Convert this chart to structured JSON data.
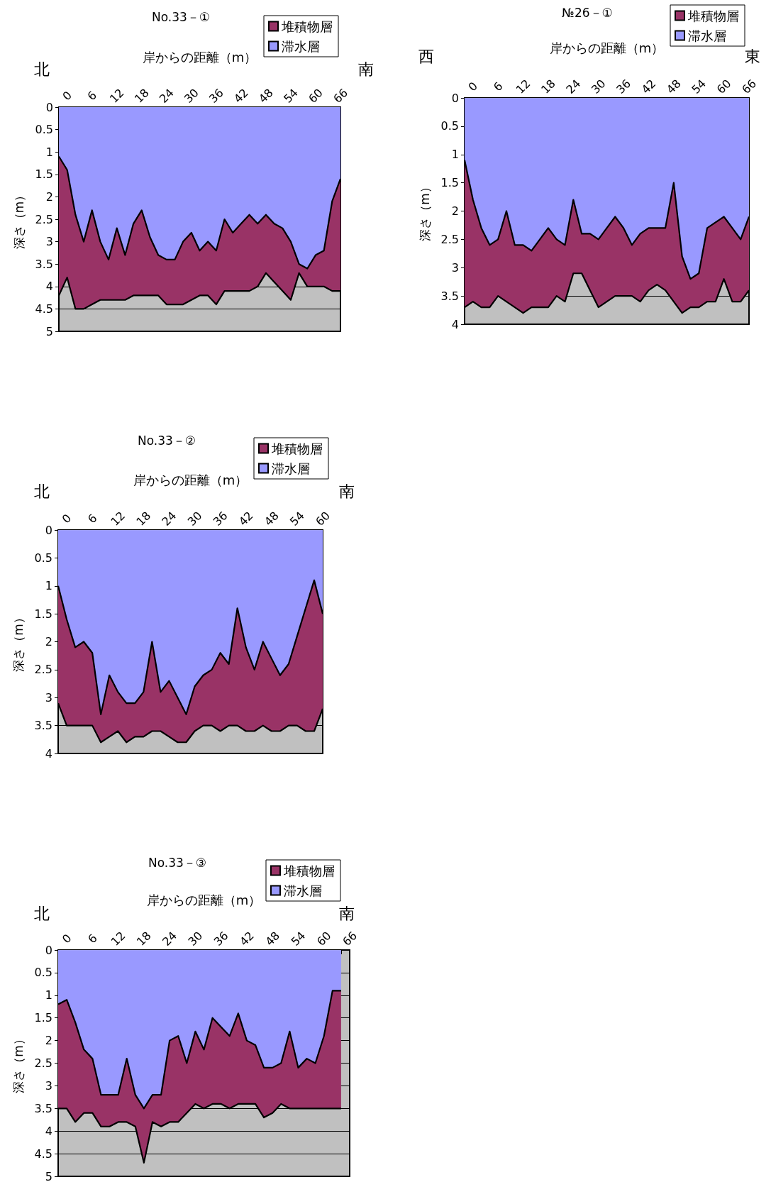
{
  "chart_data": [
    {
      "type": "area",
      "title": "No.33－①",
      "xlabel": "岸からの距離（m）",
      "ylabel": "深さ（m）",
      "annotations": [
        "北",
        "南"
      ],
      "categories": [
        null,
        "0",
        null,
        null,
        "6",
        null,
        null,
        "12",
        null,
        null,
        "18",
        null,
        null,
        "24",
        null,
        null,
        "30",
        null,
        null,
        "36",
        null,
        null,
        "42",
        null,
        null,
        "48",
        null,
        null,
        "54",
        null,
        null,
        "60",
        null,
        null,
        "66"
      ],
      "stacked": true,
      "ylim": [
        5,
        0
      ],
      "yticks": [
        0,
        0.5,
        1,
        1.5,
        2,
        2.5,
        3,
        3.5,
        4,
        4.5,
        5
      ],
      "grid": "y",
      "legend": "top right",
      "line_style": "solid",
      "marker": "none",
      "series": [
        {
          "name": "滞水層",
          "color": "#9999ff",
          "values": [
            1.1,
            1.4,
            2.4,
            3.0,
            2.3,
            3.0,
            3.4,
            2.7,
            3.3,
            2.6,
            2.3,
            2.9,
            3.3,
            3.4,
            3.4,
            3.0,
            2.8,
            3.2,
            3.0,
            3.2,
            2.5,
            2.8,
            2.6,
            2.4,
            2.6,
            2.4,
            2.6,
            2.7,
            3.0,
            3.5,
            3.6,
            3.3,
            3.2,
            2.1,
            1.6
          ]
        },
        {
          "name": "堆積物層",
          "color": "#993366",
          "values": [
            3.1,
            2.4,
            2.1,
            1.5,
            2.1,
            1.3,
            0.9,
            1.6,
            1.0,
            1.6,
            1.9,
            1.3,
            0.9,
            1.0,
            1.0,
            1.4,
            1.5,
            1.0,
            1.2,
            1.2,
            1.6,
            1.3,
            1.5,
            1.7,
            1.4,
            1.3,
            1.3,
            1.4,
            1.3,
            0.2,
            0.4,
            0.7,
            0.8,
            2.0,
            2.5
          ]
        }
      ]
    },
    {
      "type": "area",
      "title": "№26－①",
      "xlabel": "岸からの距離（m）",
      "ylabel": "深さ（m）",
      "annotations": [
        "西",
        "東"
      ],
      "categories": [
        null,
        "0",
        null,
        null,
        "6",
        null,
        null,
        "12",
        null,
        null,
        "18",
        null,
        null,
        "24",
        null,
        null,
        "30",
        null,
        null,
        "36",
        null,
        null,
        "42",
        null,
        null,
        "48",
        null,
        null,
        "54",
        null,
        null,
        "60",
        null,
        null,
        "66"
      ],
      "stacked": true,
      "ylim": [
        4,
        0
      ],
      "yticks": [
        0,
        0.5,
        1,
        1.5,
        2,
        2.5,
        3,
        3.5,
        4
      ],
      "grid": "y",
      "legend": "top right",
      "line_style": "solid",
      "marker": "none",
      "series": [
        {
          "name": "滞水層",
          "color": "#9999ff",
          "values": [
            1.1,
            1.8,
            2.3,
            2.6,
            2.5,
            2.0,
            2.6,
            2.6,
            2.7,
            2.5,
            2.3,
            2.5,
            2.6,
            1.8,
            2.4,
            2.4,
            2.5,
            2.3,
            2.1,
            2.3,
            2.6,
            2.4,
            2.3,
            2.3,
            2.3,
            1.5,
            2.8,
            3.2,
            3.1,
            2.3,
            2.2,
            2.1,
            2.3,
            2.5,
            2.1
          ]
        },
        {
          "name": "堆積物層",
          "color": "#993366",
          "values": [
            2.6,
            1.8,
            1.4,
            1.1,
            1.0,
            1.6,
            1.1,
            1.2,
            1.0,
            1.2,
            1.4,
            1.0,
            1.0,
            1.3,
            0.7,
            1.0,
            1.2,
            1.3,
            1.4,
            1.2,
            0.9,
            1.2,
            1.1,
            1.0,
            1.1,
            2.1,
            1.0,
            0.5,
            0.6,
            1.3,
            1.4,
            1.1,
            1.3,
            1.1,
            1.3
          ]
        }
      ]
    },
    {
      "type": "area",
      "title": "No.33－②",
      "xlabel": "岸からの距離（m）",
      "ylabel": "深さ（m）",
      "annotations": [
        "北",
        "南"
      ],
      "categories": [
        null,
        "0",
        null,
        null,
        "6",
        null,
        null,
        "12",
        null,
        null,
        "18",
        null,
        null,
        "24",
        null,
        null,
        "30",
        null,
        null,
        "36",
        null,
        null,
        "42",
        null,
        null,
        "48",
        null,
        null,
        "54",
        null,
        null,
        "60"
      ],
      "stacked": true,
      "ylim": [
        4,
        0
      ],
      "yticks": [
        0,
        0.5,
        1,
        1.5,
        2,
        2.5,
        3,
        3.5,
        4
      ],
      "grid": "y",
      "legend": "top right",
      "line_style": "solid",
      "marker": "none",
      "series": [
        {
          "name": "滞水層",
          "color": "#9999ff",
          "values": [
            1.0,
            1.6,
            2.1,
            2.0,
            2.2,
            3.3,
            2.6,
            2.9,
            3.1,
            3.1,
            2.9,
            2.0,
            2.9,
            2.7,
            3.0,
            3.3,
            2.8,
            2.6,
            2.5,
            2.2,
            2.4,
            1.4,
            2.1,
            2.5,
            2.0,
            2.3,
            2.6,
            2.4,
            1.9,
            1.4,
            0.9,
            1.5
          ]
        },
        {
          "name": "堆積物層",
          "color": "#993366",
          "values": [
            2.1,
            1.9,
            1.4,
            1.5,
            1.3,
            0.5,
            1.1,
            0.7,
            0.7,
            0.6,
            0.8,
            1.6,
            0.7,
            1.0,
            0.8,
            0.5,
            0.8,
            0.9,
            1.0,
            1.4,
            1.1,
            2.1,
            1.5,
            1.1,
            1.5,
            1.3,
            1.0,
            1.1,
            1.6,
            2.2,
            2.7,
            1.7
          ]
        }
      ]
    },
    {
      "type": "area",
      "title": "No.33－③",
      "xlabel": "岸からの距離（m）",
      "ylabel": "深さ（m）",
      "annotations": [
        "北",
        "南"
      ],
      "categories": [
        null,
        "0",
        null,
        null,
        "6",
        null,
        null,
        "12",
        null,
        null,
        "18",
        null,
        null,
        "24",
        null,
        null,
        "30",
        null,
        null,
        "36",
        null,
        null,
        "42",
        null,
        null,
        "48",
        null,
        null,
        "54",
        null,
        null,
        "60",
        null,
        null,
        "66"
      ],
      "stacked": true,
      "ylim": [
        5,
        0
      ],
      "yticks": [
        0,
        0.5,
        1,
        1.5,
        2,
        2.5,
        3,
        3.5,
        4,
        4.5,
        5
      ],
      "grid": "y",
      "legend": "top right",
      "line_style": "solid",
      "marker": "none",
      "series": [
        {
          "name": "滞水層",
          "color": "#9999ff",
          "values": [
            1.2,
            1.1,
            1.6,
            2.2,
            2.4,
            3.2,
            3.2,
            3.2,
            2.4,
            3.2,
            3.5,
            3.2,
            3.2,
            2.0,
            1.9,
            2.5,
            1.8,
            2.2,
            1.5,
            1.7,
            1.9,
            1.4,
            2.0,
            2.1,
            2.6,
            2.6,
            2.5,
            1.8,
            2.6,
            2.4,
            2.5,
            1.9,
            0.9,
            0.9,
            null
          ]
        },
        {
          "name": "堆積物層",
          "color": "#993366",
          "values": [
            2.3,
            2.4,
            2.2,
            1.4,
            1.2,
            0.7,
            0.7,
            0.6,
            1.4,
            0.7,
            1.2,
            0.6,
            0.7,
            1.8,
            1.9,
            1.1,
            1.6,
            1.3,
            1.9,
            1.7,
            1.6,
            2.0,
            1.4,
            1.3,
            1.1,
            1.0,
            0.9,
            1.7,
            0.9,
            1.1,
            1.0,
            1.6,
            2.6,
            2.6,
            null
          ]
        }
      ]
    }
  ]
}
